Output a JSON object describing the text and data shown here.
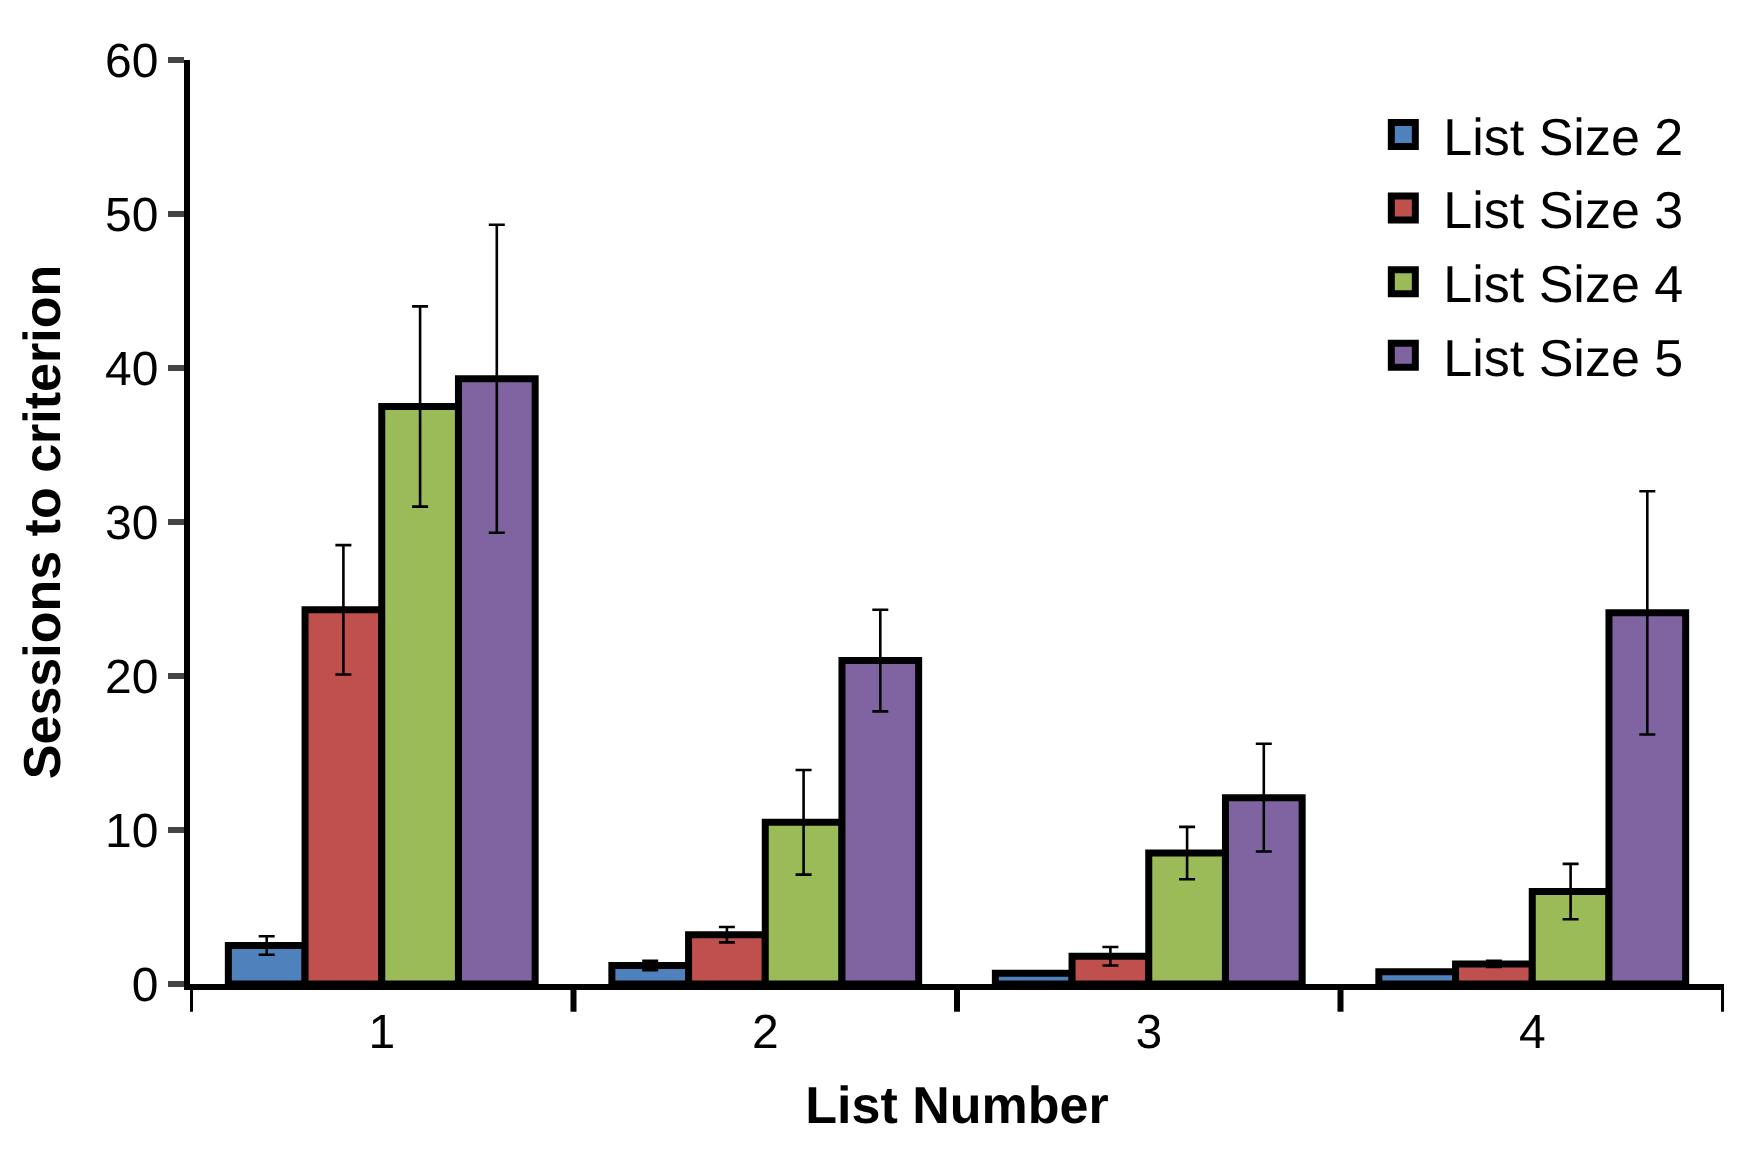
{
  "chart_data": {
    "type": "bar",
    "xlabel": "List Number",
    "ylabel": "Sessions to criterion",
    "categories": [
      "1",
      "2",
      "3",
      "4"
    ],
    "series": [
      {
        "name": "List Size 2",
        "color": "#4f81bd",
        "values": [
          2.5,
          1.2,
          0.7,
          0.8
        ],
        "errors": [
          0.6,
          0.3,
          null,
          null
        ]
      },
      {
        "name": "List Size 3",
        "color": "#c0504d",
        "values": [
          24.3,
          3.2,
          1.8,
          1.3
        ],
        "errors": [
          4.2,
          0.5,
          0.6,
          0.2
        ]
      },
      {
        "name": "List Size 4",
        "color": "#9bbb59",
        "values": [
          37.5,
          10.5,
          8.5,
          6.0
        ],
        "errors": [
          6.5,
          3.4,
          1.7,
          1.8
        ]
      },
      {
        "name": "List Size 5",
        "color": "#8064a2",
        "values": [
          39.3,
          21.0,
          12.1,
          24.1
        ],
        "errors": [
          10.0,
          3.3,
          3.5,
          7.9
        ]
      }
    ],
    "ylim": [
      0,
      60
    ],
    "yticks": [
      0,
      10,
      20,
      30,
      40,
      50,
      60
    ],
    "legend": "top right"
  }
}
